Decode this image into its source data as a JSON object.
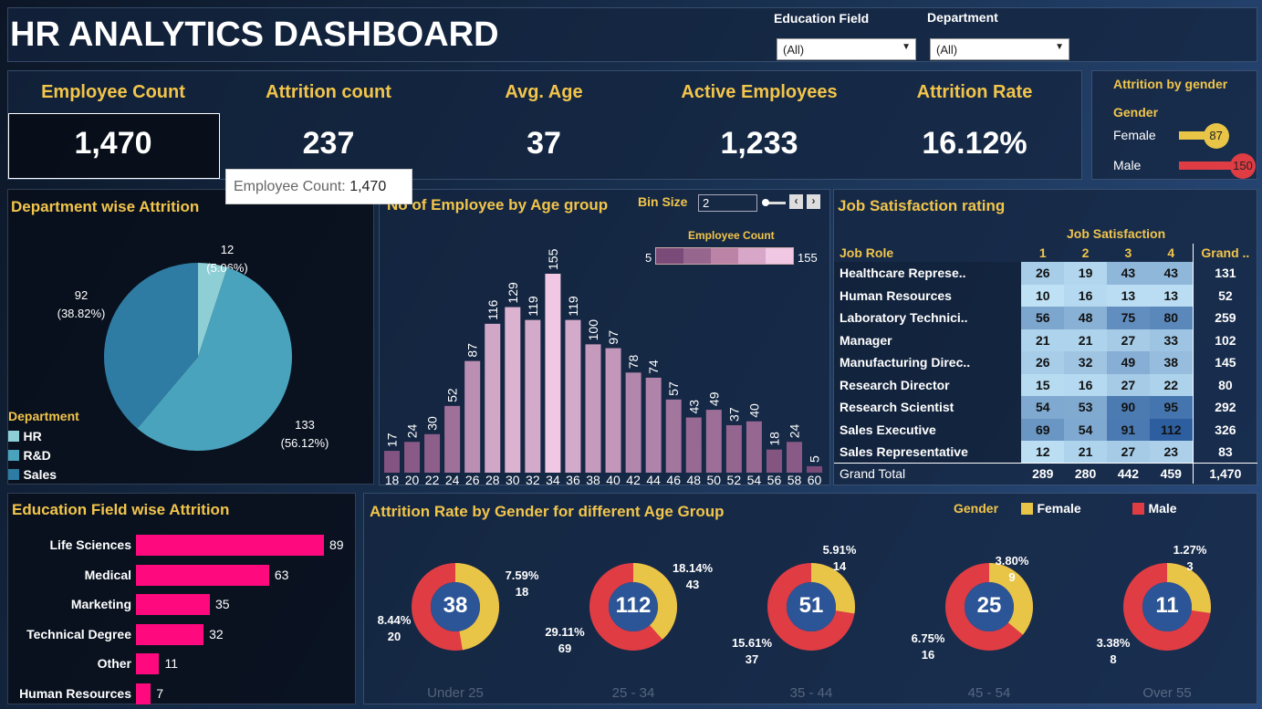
{
  "header": {
    "title": "HR ANALYTICS DASHBOARD",
    "filters": [
      {
        "label": "Education Field",
        "value": "(All)"
      },
      {
        "label": "Department",
        "value": "(All)"
      }
    ]
  },
  "kpis": [
    {
      "label": "Employee Count",
      "value": "1,470"
    },
    {
      "label": "Attrition count",
      "value": "237"
    },
    {
      "label": "Avg. Age",
      "value": "37"
    },
    {
      "label": "Active Employees",
      "value": "1,233"
    },
    {
      "label": "Attrition Rate",
      "value": "16.12%"
    }
  ],
  "tooltip": {
    "label": "Employee Count:",
    "value": "1,470"
  },
  "gender_panel": {
    "title": "Attrition by gender",
    "legend": "Gender",
    "rows": [
      {
        "label": "Female",
        "value": 87,
        "color": "#e8c547"
      },
      {
        "label": "Male",
        "value": 150,
        "color": "#e03c44"
      }
    ]
  },
  "department": {
    "title": "Department wise Attrition",
    "legend_title": "Department",
    "slices": [
      {
        "name": "HR",
        "value": 12,
        "pct": "(5.06%)",
        "color": "#8ecfd6"
      },
      {
        "name": "R&D",
        "value": 133,
        "pct": "(56.12%)",
        "color": "#4aa3bd"
      },
      {
        "name": "Sales",
        "value": 92,
        "pct": "(38.82%)",
        "color": "#2e7ca3"
      }
    ]
  },
  "age": {
    "title": "No of Employee by Age group",
    "bin_label": "Bin Size",
    "bin_value": "2",
    "legend_title": "Employee Count",
    "legend_min": "5",
    "legend_max": "155"
  },
  "chart_data": {
    "type": "bar",
    "title": "No of Employee by Age group",
    "categories": [
      "18",
      "20",
      "22",
      "24",
      "26",
      "28",
      "30",
      "32",
      "34",
      "36",
      "38",
      "40",
      "42",
      "44",
      "46",
      "48",
      "50",
      "52",
      "54",
      "56",
      "58",
      "60"
    ],
    "values": [
      17,
      24,
      30,
      52,
      87,
      116,
      129,
      119,
      155,
      119,
      100,
      97,
      78,
      74,
      57,
      43,
      49,
      37,
      40,
      18,
      24,
      5
    ],
    "ylim": [
      0,
      155
    ]
  },
  "job": {
    "title": "Job Satisfaction rating",
    "col_header": "Job Satisfaction",
    "row_header": "Job Role",
    "cols": [
      "1",
      "2",
      "3",
      "4",
      "Grand .."
    ],
    "rows": [
      [
        "Healthcare Represe..",
        26,
        19,
        43,
        43,
        131
      ],
      [
        "Human Resources",
        10,
        16,
        13,
        13,
        52
      ],
      [
        "Laboratory Technici..",
        56,
        48,
        75,
        80,
        259
      ],
      [
        "Manager",
        21,
        21,
        27,
        33,
        102
      ],
      [
        "Manufacturing Direc..",
        26,
        32,
        49,
        38,
        145
      ],
      [
        "Research Director",
        15,
        16,
        27,
        22,
        80
      ],
      [
        "Research Scientist",
        54,
        53,
        90,
        95,
        292
      ],
      [
        "Sales Executive",
        69,
        54,
        91,
        112,
        326
      ],
      [
        "Sales Representative",
        12,
        21,
        27,
        23,
        83
      ]
    ],
    "total": [
      "Grand Total",
      "289",
      "280",
      "442",
      "459",
      "1,470"
    ]
  },
  "education": {
    "title": "Education Field wise Attrition",
    "color": "#ff0a7e",
    "items": [
      {
        "label": "Life Sciences",
        "value": 89
      },
      {
        "label": "Medical",
        "value": 63
      },
      {
        "label": "Marketing",
        "value": 35
      },
      {
        "label": "Technical Degree",
        "value": 32
      },
      {
        "label": "Other",
        "value": 11
      },
      {
        "label": "Human Resources",
        "value": 7
      }
    ]
  },
  "donuts": {
    "title": "Attrition Rate by Gender for different Age Group",
    "legend_title": "Gender",
    "legend": [
      {
        "label": "Female",
        "color": "#e8c547"
      },
      {
        "label": "Male",
        "color": "#e03c44"
      }
    ],
    "groups": [
      {
        "label": "Under 25",
        "total": "38",
        "f": 18,
        "fp": "7.59%",
        "m": 20,
        "mp": "8.44%"
      },
      {
        "label": "25 - 34",
        "total": "112",
        "f": 43,
        "fp": "18.14%",
        "m": 69,
        "mp": "29.11%"
      },
      {
        "label": "35 - 44",
        "total": "51",
        "f": 14,
        "fp": "5.91%",
        "m": 37,
        "mp": "15.61%"
      },
      {
        "label": "45 - 54",
        "total": "25",
        "f": 9,
        "fp": "3.80%",
        "m": 16,
        "mp": "6.75%"
      },
      {
        "label": "Over 55",
        "total": "11",
        "f": 3,
        "fp": "1.27%",
        "m": 8,
        "mp": "3.38%"
      }
    ]
  }
}
